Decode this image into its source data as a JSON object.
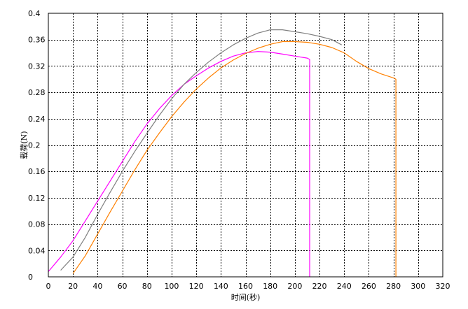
{
  "chart_data": {
    "type": "line",
    "title": "",
    "xlabel": "时间(秒)",
    "ylabel": "载荷(N)",
    "xlim": [
      0,
      320
    ],
    "ylim": [
      0,
      0.4
    ],
    "xticks": [
      0,
      20,
      40,
      60,
      80,
      100,
      120,
      140,
      160,
      180,
      200,
      220,
      240,
      260,
      280,
      300,
      320
    ],
    "yticks": [
      0,
      0.04,
      0.08,
      0.12,
      0.16,
      0.2,
      0.24,
      0.28,
      0.32,
      0.36,
      0.4
    ],
    "ytick_labels": [
      "0",
      "0.04",
      "0.08",
      "0.12",
      "0.16",
      "0.2",
      "0.24",
      "0.28",
      "0.32",
      "0.36",
      "0.4"
    ],
    "grid": true,
    "legend": "none",
    "series": [
      {
        "color": "#ff00ff",
        "points": [
          [
            0,
            0.008
          ],
          [
            10,
            0.03
          ],
          [
            20,
            0.055
          ],
          [
            30,
            0.085
          ],
          [
            40,
            0.115
          ],
          [
            50,
            0.145
          ],
          [
            60,
            0.175
          ],
          [
            70,
            0.205
          ],
          [
            80,
            0.232
          ],
          [
            90,
            0.255
          ],
          [
            100,
            0.275
          ],
          [
            110,
            0.292
          ],
          [
            120,
            0.305
          ],
          [
            130,
            0.317
          ],
          [
            140,
            0.327
          ],
          [
            150,
            0.335
          ],
          [
            160,
            0.34
          ],
          [
            170,
            0.342
          ],
          [
            180,
            0.341
          ],
          [
            190,
            0.338
          ],
          [
            200,
            0.335
          ],
          [
            210,
            0.332
          ],
          [
            212,
            0.33
          ],
          [
            212,
            0.0
          ]
        ]
      },
      {
        "color": "#808080",
        "points": [
          [
            10,
            0.01
          ],
          [
            20,
            0.03
          ],
          [
            30,
            0.06
          ],
          [
            40,
            0.095
          ],
          [
            50,
            0.128
          ],
          [
            60,
            0.16
          ],
          [
            70,
            0.19
          ],
          [
            80,
            0.218
          ],
          [
            90,
            0.245
          ],
          [
            100,
            0.27
          ],
          [
            110,
            0.292
          ],
          [
            120,
            0.31
          ],
          [
            130,
            0.326
          ],
          [
            140,
            0.34
          ],
          [
            150,
            0.352
          ],
          [
            160,
            0.362
          ],
          [
            170,
            0.37
          ],
          [
            180,
            0.375
          ],
          [
            190,
            0.375
          ],
          [
            200,
            0.372
          ],
          [
            210,
            0.369
          ],
          [
            220,
            0.365
          ],
          [
            230,
            0.36
          ],
          [
            238,
            0.352
          ]
        ]
      },
      {
        "color": "#ff8000",
        "points": [
          [
            20,
            0.005
          ],
          [
            30,
            0.032
          ],
          [
            40,
            0.065
          ],
          [
            50,
            0.098
          ],
          [
            60,
            0.13
          ],
          [
            70,
            0.162
          ],
          [
            80,
            0.192
          ],
          [
            90,
            0.218
          ],
          [
            100,
            0.243
          ],
          [
            110,
            0.265
          ],
          [
            120,
            0.285
          ],
          [
            130,
            0.302
          ],
          [
            140,
            0.317
          ],
          [
            150,
            0.329
          ],
          [
            160,
            0.339
          ],
          [
            170,
            0.347
          ],
          [
            180,
            0.353
          ],
          [
            190,
            0.357
          ],
          [
            200,
            0.357
          ],
          [
            210,
            0.356
          ],
          [
            220,
            0.353
          ],
          [
            230,
            0.348
          ],
          [
            240,
            0.34
          ],
          [
            250,
            0.327
          ],
          [
            260,
            0.316
          ],
          [
            270,
            0.308
          ],
          [
            280,
            0.302
          ],
          [
            282,
            0.3
          ],
          [
            282,
            0.0
          ]
        ]
      }
    ]
  }
}
